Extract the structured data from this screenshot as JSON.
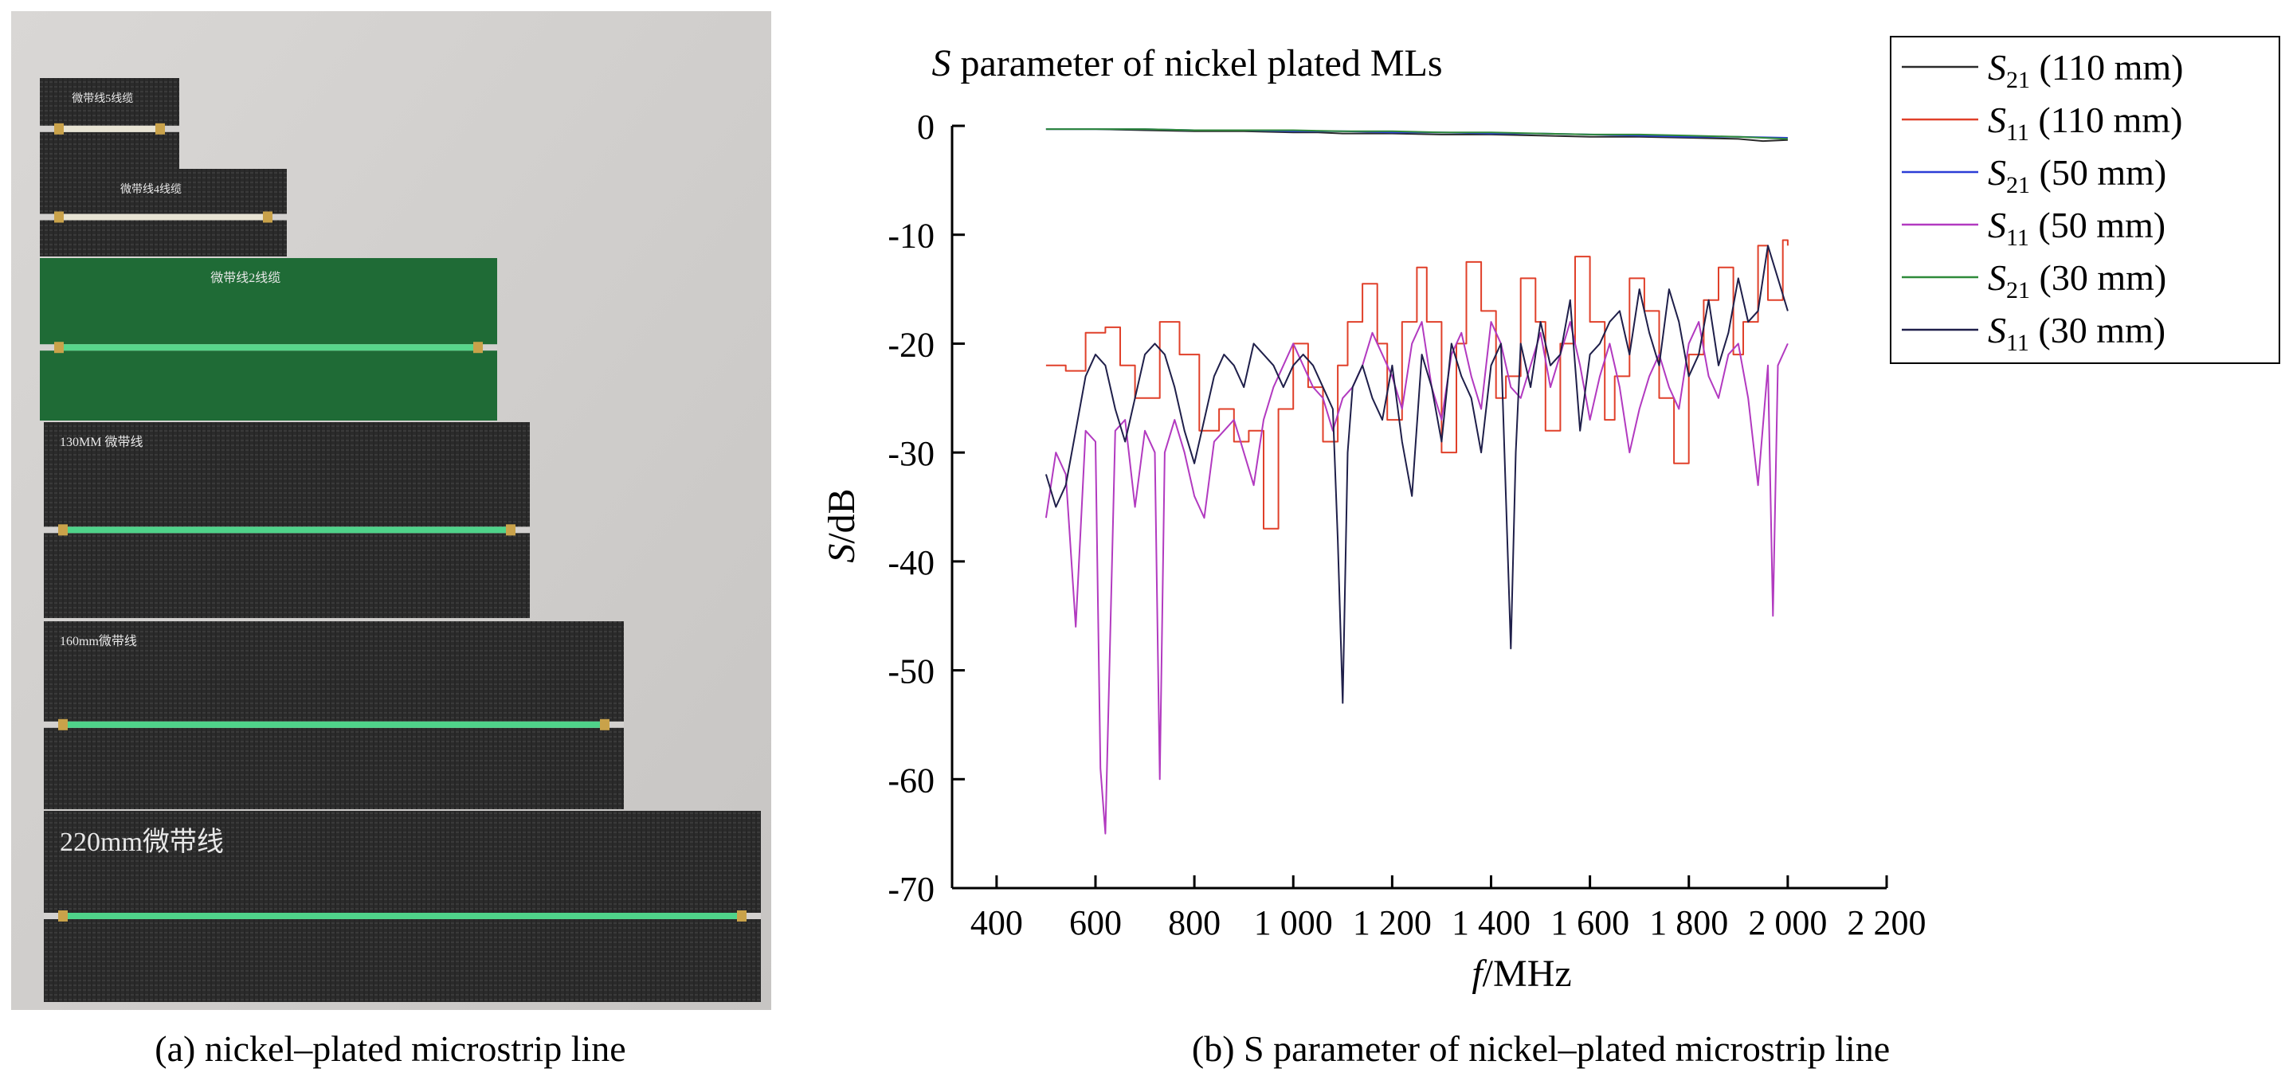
{
  "photo": {
    "caption": "(a) nickel–plated microstrip line",
    "background_color": "#d3d1cf",
    "strips": [
      {
        "label": "微带线5线缆",
        "substrate_color": "#2b2b2b",
        "trace_color": "#e8e4d4"
      },
      {
        "label": "微带线4线缆",
        "substrate_color": "#2b2b2b",
        "trace_color": "#e8e4d4"
      },
      {
        "label": "微带线2线缆",
        "substrate_color": "#1f6b36",
        "trace_color": "#58d68b"
      },
      {
        "label": "130MM 微带线",
        "substrate_color": "#2c2c2c",
        "trace_color": "#4fd38a"
      },
      {
        "label": "160mm微带线",
        "substrate_color": "#2a2a2a",
        "trace_color": "#4fd38a"
      },
      {
        "label": "220mm微带线",
        "substrate_color": "#2a2a2a",
        "trace_color": "#4fd38a"
      }
    ]
  },
  "chart_caption": "(b) S parameter of nickel–plated microstrip line",
  "chart_data": {
    "type": "line",
    "title": "S parameter of nickel plated MLs",
    "title_italic_prefix": "S",
    "xlabel": "f/MHz",
    "ylabel": "S/dB",
    "xlim": [
      310,
      2200
    ],
    "ylim": [
      -70,
      0
    ],
    "xticks": [
      400,
      600,
      800,
      1000,
      1200,
      1400,
      1600,
      1800,
      2000,
      2200
    ],
    "xtick_labels": [
      "400",
      "600",
      "800",
      "1 000",
      "1 200",
      "1 400",
      "1 600",
      "1 800",
      "2 000",
      "2 200"
    ],
    "yticks": [
      0,
      -10,
      -20,
      -30,
      -40,
      -50,
      -60,
      -70
    ],
    "ytick_labels": [
      "0",
      "-10",
      "-20",
      "-30",
      "-40",
      "-50",
      "-60",
      "-70"
    ],
    "grid": false,
    "legend_position": "top-right",
    "series": [
      {
        "name": "S21 (110 mm)",
        "legend_main": "S",
        "legend_sub": "21",
        "legend_rest": " (110 mm)",
        "color": "#2a2a2a",
        "step": false,
        "x": [
          500,
          600,
          700,
          800,
          900,
          1000,
          1050,
          1100,
          1200,
          1300,
          1400,
          1500,
          1600,
          1700,
          1800,
          1900,
          1950,
          2000
        ],
        "y": [
          -0.3,
          -0.3,
          -0.4,
          -0.5,
          -0.5,
          -0.6,
          -0.6,
          -0.7,
          -0.7,
          -0.8,
          -0.8,
          -0.9,
          -1.0,
          -1.0,
          -1.1,
          -1.2,
          -1.4,
          -1.3
        ]
      },
      {
        "name": "S11 (110 mm)",
        "legend_main": "S",
        "legend_sub": "11",
        "legend_rest": " (110 mm)",
        "color": "#e0402a",
        "step": true,
        "x": [
          500,
          540,
          580,
          620,
          650,
          680,
          730,
          770,
          810,
          850,
          880,
          910,
          940,
          970,
          1000,
          1030,
          1060,
          1090,
          1110,
          1140,
          1170,
          1190,
          1220,
          1250,
          1270,
          1300,
          1330,
          1350,
          1380,
          1410,
          1430,
          1460,
          1490,
          1510,
          1540,
          1570,
          1600,
          1630,
          1650,
          1680,
          1710,
          1740,
          1770,
          1800,
          1830,
          1860,
          1890,
          1910,
          1940,
          1960,
          1990,
          2000
        ],
        "y": [
          -22,
          -22.5,
          -19,
          -18.5,
          -22,
          -25,
          -18,
          -21,
          -28,
          -26,
          -29,
          -28,
          -37,
          -26,
          -20,
          -24,
          -29,
          -22,
          -18,
          -14.5,
          -20,
          -27,
          -18,
          -13,
          -18,
          -30,
          -20,
          -12.5,
          -17,
          -25,
          -23,
          -14,
          -18,
          -28,
          -20,
          -12,
          -18,
          -27,
          -23,
          -14,
          -17,
          -25,
          -31,
          -21,
          -16,
          -13,
          -21,
          -18,
          -11,
          -16,
          -10.5,
          -11
        ]
      },
      {
        "name": "S21 (50 mm)",
        "legend_main": "S",
        "legend_sub": "21",
        "legend_rest": " (50 mm)",
        "color": "#2b3dd6",
        "step": false,
        "x": [
          500,
          600,
          700,
          800,
          900,
          1000,
          1100,
          1200,
          1300,
          1400,
          1500,
          1600,
          1700,
          1800,
          1900,
          2000
        ],
        "y": [
          -0.3,
          -0.3,
          -0.3,
          -0.4,
          -0.4,
          -0.5,
          -0.5,
          -0.6,
          -0.6,
          -0.7,
          -0.7,
          -0.8,
          -0.9,
          -1.0,
          -1.0,
          -1.1
        ]
      },
      {
        "name": "S11 (50 mm)",
        "legend_main": "S",
        "legend_sub": "11",
        "legend_rest": " (50 mm)",
        "color": "#b23ac0",
        "step": false,
        "x": [
          500,
          520,
          540,
          560,
          580,
          600,
          610,
          620,
          640,
          660,
          680,
          700,
          720,
          730,
          740,
          760,
          780,
          800,
          820,
          840,
          860,
          880,
          900,
          920,
          940,
          960,
          980,
          1000,
          1020,
          1040,
          1060,
          1080,
          1100,
          1120,
          1140,
          1160,
          1180,
          1200,
          1220,
          1240,
          1260,
          1280,
          1300,
          1320,
          1340,
          1360,
          1380,
          1400,
          1420,
          1440,
          1460,
          1480,
          1500,
          1520,
          1540,
          1560,
          1580,
          1600,
          1620,
          1640,
          1660,
          1680,
          1700,
          1720,
          1740,
          1760,
          1780,
          1800,
          1820,
          1840,
          1860,
          1880,
          1900,
          1920,
          1940,
          1960,
          1970,
          1980,
          2000
        ],
        "y": [
          -36,
          -30,
          -32,
          -46,
          -28,
          -29,
          -59,
          -65,
          -28,
          -27,
          -35,
          -28,
          -30,
          -60,
          -30,
          -27,
          -30,
          -34,
          -36,
          -29,
          -28,
          -27,
          -30,
          -33,
          -27,
          -24,
          -22,
          -20,
          -22,
          -24,
          -25,
          -28,
          -25,
          -24,
          -22,
          -19,
          -21,
          -23,
          -26,
          -20,
          -18,
          -24,
          -27,
          -21,
          -19,
          -23,
          -26,
          -18,
          -20,
          -24,
          -25,
          -22,
          -19,
          -24,
          -21,
          -18,
          -22,
          -27,
          -23,
          -20,
          -24,
          -30,
          -26,
          -23,
          -21,
          -24,
          -26,
          -20,
          -18,
          -23,
          -25,
          -21,
          -20,
          -25,
          -33,
          -22,
          -45,
          -22,
          -20
        ]
      },
      {
        "name": "S21 (30 mm)",
        "legend_main": "S",
        "legend_sub": "21",
        "legend_rest": " (30 mm)",
        "color": "#2e8a3a",
        "step": false,
        "x": [
          500,
          600,
          700,
          800,
          900,
          1000,
          1100,
          1200,
          1300,
          1400,
          1500,
          1600,
          1700,
          1800,
          1900,
          1950,
          2000
        ],
        "y": [
          -0.3,
          -0.3,
          -0.3,
          -0.4,
          -0.4,
          -0.4,
          -0.5,
          -0.5,
          -0.6,
          -0.6,
          -0.7,
          -0.8,
          -0.8,
          -0.9,
          -1.0,
          -1.1,
          -1.2
        ]
      },
      {
        "name": "S11 (30 mm)",
        "legend_main": "S",
        "legend_sub": "11",
        "legend_rest": " (30 mm)",
        "color": "#1f1f4a",
        "step": false,
        "x": [
          500,
          520,
          540,
          560,
          580,
          600,
          620,
          640,
          660,
          680,
          700,
          720,
          740,
          760,
          780,
          800,
          820,
          840,
          860,
          880,
          900,
          920,
          940,
          960,
          980,
          1000,
          1020,
          1040,
          1060,
          1080,
          1090,
          1100,
          1110,
          1120,
          1140,
          1160,
          1180,
          1200,
          1220,
          1240,
          1260,
          1280,
          1300,
          1320,
          1340,
          1360,
          1380,
          1400,
          1420,
          1440,
          1450,
          1460,
          1480,
          1500,
          1520,
          1540,
          1560,
          1580,
          1600,
          1620,
          1640,
          1660,
          1680,
          1700,
          1720,
          1740,
          1760,
          1780,
          1800,
          1820,
          1840,
          1860,
          1880,
          1900,
          1920,
          1940,
          1960,
          1980,
          2000
        ],
        "y": [
          -32,
          -35,
          -33,
          -28,
          -23,
          -21,
          -22,
          -26,
          -29,
          -25,
          -21,
          -20,
          -21,
          -24,
          -28,
          -31,
          -27,
          -23,
          -21,
          -22,
          -24,
          -20,
          -21,
          -22,
          -24,
          -22,
          -21,
          -22,
          -24,
          -26,
          -38,
          -53,
          -30,
          -24,
          -22,
          -25,
          -27,
          -22,
          -29,
          -34,
          -21,
          -24,
          -29,
          -20,
          -23,
          -25,
          -30,
          -22,
          -20,
          -48,
          -30,
          -20,
          -24,
          -18,
          -22,
          -21,
          -16,
          -28,
          -21,
          -20,
          -18,
          -17,
          -21,
          -15,
          -19,
          -22,
          -15,
          -18,
          -23,
          -21,
          -16,
          -22,
          -19,
          -14,
          -18,
          -17,
          -11,
          -14,
          -17
        ]
      }
    ]
  }
}
